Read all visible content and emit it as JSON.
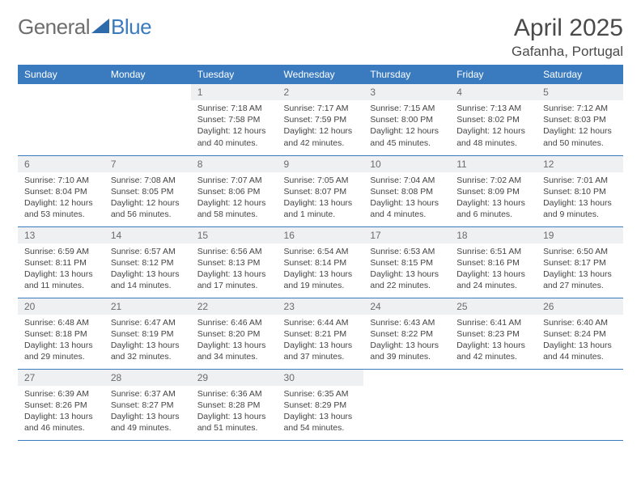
{
  "brand": {
    "part1": "General",
    "part2": "Blue"
  },
  "title": "April 2025",
  "location": "Gafanha, Portugal",
  "colors": {
    "header_bg": "#3a7bbf",
    "header_text": "#ffffff",
    "daynum_bg": "#eef0f2",
    "daynum_text": "#6b6b6b",
    "rule": "#3a7bbf",
    "body_text": "#444444",
    "logo_gray": "#6e6e6e",
    "logo_blue": "#3a7bbf"
  },
  "weekdays": [
    "Sunday",
    "Monday",
    "Tuesday",
    "Wednesday",
    "Thursday",
    "Friday",
    "Saturday"
  ],
  "weeks": [
    [
      null,
      null,
      {
        "n": "1",
        "sr": "7:18 AM",
        "ss": "7:58 PM",
        "dl": "12 hours and 40 minutes."
      },
      {
        "n": "2",
        "sr": "7:17 AM",
        "ss": "7:59 PM",
        "dl": "12 hours and 42 minutes."
      },
      {
        "n": "3",
        "sr": "7:15 AM",
        "ss": "8:00 PM",
        "dl": "12 hours and 45 minutes."
      },
      {
        "n": "4",
        "sr": "7:13 AM",
        "ss": "8:02 PM",
        "dl": "12 hours and 48 minutes."
      },
      {
        "n": "5",
        "sr": "7:12 AM",
        "ss": "8:03 PM",
        "dl": "12 hours and 50 minutes."
      }
    ],
    [
      {
        "n": "6",
        "sr": "7:10 AM",
        "ss": "8:04 PM",
        "dl": "12 hours and 53 minutes."
      },
      {
        "n": "7",
        "sr": "7:08 AM",
        "ss": "8:05 PM",
        "dl": "12 hours and 56 minutes."
      },
      {
        "n": "8",
        "sr": "7:07 AM",
        "ss": "8:06 PM",
        "dl": "12 hours and 58 minutes."
      },
      {
        "n": "9",
        "sr": "7:05 AM",
        "ss": "8:07 PM",
        "dl": "13 hours and 1 minute."
      },
      {
        "n": "10",
        "sr": "7:04 AM",
        "ss": "8:08 PM",
        "dl": "13 hours and 4 minutes."
      },
      {
        "n": "11",
        "sr": "7:02 AM",
        "ss": "8:09 PM",
        "dl": "13 hours and 6 minutes."
      },
      {
        "n": "12",
        "sr": "7:01 AM",
        "ss": "8:10 PM",
        "dl": "13 hours and 9 minutes."
      }
    ],
    [
      {
        "n": "13",
        "sr": "6:59 AM",
        "ss": "8:11 PM",
        "dl": "13 hours and 11 minutes."
      },
      {
        "n": "14",
        "sr": "6:57 AM",
        "ss": "8:12 PM",
        "dl": "13 hours and 14 minutes."
      },
      {
        "n": "15",
        "sr": "6:56 AM",
        "ss": "8:13 PM",
        "dl": "13 hours and 17 minutes."
      },
      {
        "n": "16",
        "sr": "6:54 AM",
        "ss": "8:14 PM",
        "dl": "13 hours and 19 minutes."
      },
      {
        "n": "17",
        "sr": "6:53 AM",
        "ss": "8:15 PM",
        "dl": "13 hours and 22 minutes."
      },
      {
        "n": "18",
        "sr": "6:51 AM",
        "ss": "8:16 PM",
        "dl": "13 hours and 24 minutes."
      },
      {
        "n": "19",
        "sr": "6:50 AM",
        "ss": "8:17 PM",
        "dl": "13 hours and 27 minutes."
      }
    ],
    [
      {
        "n": "20",
        "sr": "6:48 AM",
        "ss": "8:18 PM",
        "dl": "13 hours and 29 minutes."
      },
      {
        "n": "21",
        "sr": "6:47 AM",
        "ss": "8:19 PM",
        "dl": "13 hours and 32 minutes."
      },
      {
        "n": "22",
        "sr": "6:46 AM",
        "ss": "8:20 PM",
        "dl": "13 hours and 34 minutes."
      },
      {
        "n": "23",
        "sr": "6:44 AM",
        "ss": "8:21 PM",
        "dl": "13 hours and 37 minutes."
      },
      {
        "n": "24",
        "sr": "6:43 AM",
        "ss": "8:22 PM",
        "dl": "13 hours and 39 minutes."
      },
      {
        "n": "25",
        "sr": "6:41 AM",
        "ss": "8:23 PM",
        "dl": "13 hours and 42 minutes."
      },
      {
        "n": "26",
        "sr": "6:40 AM",
        "ss": "8:24 PM",
        "dl": "13 hours and 44 minutes."
      }
    ],
    [
      {
        "n": "27",
        "sr": "6:39 AM",
        "ss": "8:26 PM",
        "dl": "13 hours and 46 minutes."
      },
      {
        "n": "28",
        "sr": "6:37 AM",
        "ss": "8:27 PM",
        "dl": "13 hours and 49 minutes."
      },
      {
        "n": "29",
        "sr": "6:36 AM",
        "ss": "8:28 PM",
        "dl": "13 hours and 51 minutes."
      },
      {
        "n": "30",
        "sr": "6:35 AM",
        "ss": "8:29 PM",
        "dl": "13 hours and 54 minutes."
      },
      null,
      null,
      null
    ]
  ],
  "labels": {
    "sunrise": "Sunrise: ",
    "sunset": "Sunset: ",
    "daylight": "Daylight: "
  }
}
